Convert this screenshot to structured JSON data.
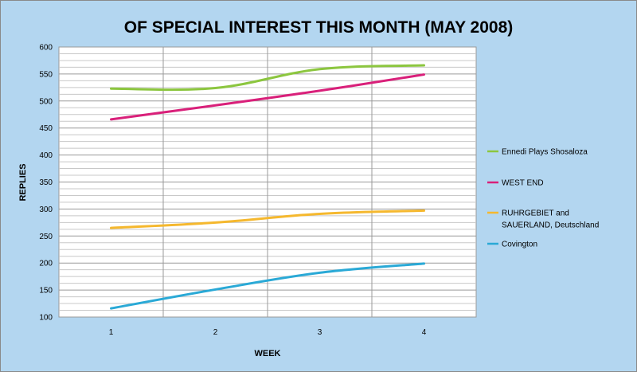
{
  "chart_data": {
    "type": "line",
    "title": "OF SPECIAL INTEREST THIS MONTH (MAY 2008)",
    "xlabel": "WEEK",
    "ylabel": "REPLIES",
    "x": [
      1,
      2,
      3,
      4
    ],
    "x_tick_labels": [
      "1",
      "2",
      "3",
      "4"
    ],
    "ylim": [
      100,
      600
    ],
    "y_ticks": [
      100,
      150,
      200,
      250,
      300,
      350,
      400,
      450,
      500,
      550,
      600
    ],
    "grid": true,
    "legend_position": "right",
    "series": [
      {
        "name": "Ennedi Plays Shosaloza",
        "color": "#8cc63f",
        "values": [
          523,
          524,
          559,
          566
        ]
      },
      {
        "name": "WEST END",
        "color": "#d9207a",
        "values": [
          466,
          492,
          519,
          549
        ]
      },
      {
        "name": "RUHRGEBIET and SAUERLAND, Deutschland",
        "color": "#f5b82e",
        "values": [
          265,
          275,
          291,
          297
        ]
      },
      {
        "name": "Covington",
        "color": "#2aa9d6",
        "values": [
          116,
          151,
          182,
          199
        ]
      }
    ]
  }
}
